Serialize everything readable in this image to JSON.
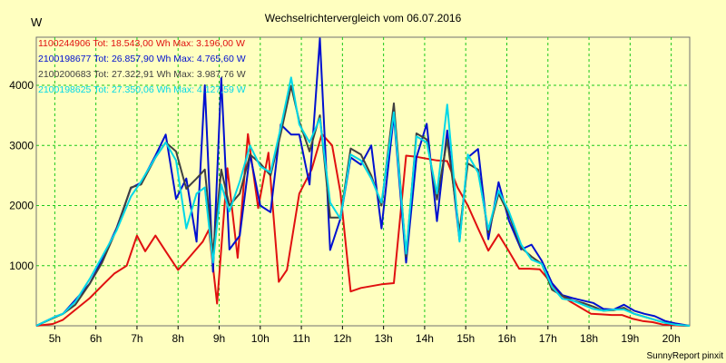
{
  "chart_data": {
    "type": "line",
    "title": "Wechselrichtervergleich vom 06.07.2016",
    "ylabel": "W",
    "xlabel": "",
    "footer": "SunnyReport pinxit",
    "ylim": [
      0,
      4800
    ],
    "xlim": [
      4.55,
      20.45
    ],
    "yticks": [
      1000,
      2000,
      3000,
      4000
    ],
    "xticks": [
      5,
      6,
      7,
      8,
      9,
      10,
      11,
      12,
      13,
      14,
      15,
      16,
      17,
      18,
      19,
      20
    ],
    "xtick_labels": [
      "5h",
      "6h",
      "7h",
      "8h",
      "9h",
      "10h",
      "11h",
      "12h",
      "13h",
      "14h",
      "15h",
      "16h",
      "17h",
      "18h",
      "19h",
      "20h"
    ],
    "grid": true,
    "legend_position": "top-left",
    "series": [
      {
        "name": "1100244906",
        "legend": "1100244906 Tot: 18.543,00 Wh Max: 3.196,00 W",
        "color": "#e01010",
        "x": [
          4.55,
          4.95,
          5.2,
          5.45,
          5.85,
          6.2,
          6.45,
          6.75,
          7.0,
          7.2,
          7.45,
          7.7,
          8.0,
          8.2,
          8.4,
          8.6,
          8.75,
          8.95,
          9.2,
          9.45,
          9.7,
          9.95,
          10.2,
          10.45,
          10.65,
          10.95,
          11.25,
          11.5,
          11.75,
          11.95,
          12.2,
          12.45,
          12.7,
          12.95,
          13.25,
          13.55,
          13.8,
          14.05,
          14.3,
          14.55,
          14.8,
          15.05,
          15.3,
          15.55,
          15.8,
          16.05,
          16.3,
          16.55,
          16.8,
          17.05,
          17.3,
          17.55,
          17.8,
          18.05,
          18.3,
          18.55,
          18.8,
          19.05,
          19.3,
          19.55,
          19.8,
          20.05,
          20.3,
          20.45
        ],
        "values": [
          0,
          30,
          100,
          240,
          460,
          700,
          870,
          1000,
          1500,
          1240,
          1500,
          1240,
          930,
          1080,
          1240,
          1400,
          1600,
          370,
          2620,
          1130,
          3190,
          1960,
          2880,
          730,
          930,
          2200,
          2600,
          3190,
          3000,
          2220,
          570,
          630,
          660,
          690,
          710,
          2830,
          2810,
          2780,
          2750,
          2740,
          2300,
          2000,
          1620,
          1250,
          1520,
          1240,
          950,
          950,
          940,
          740,
          520,
          400,
          300,
          200,
          190,
          180,
          180,
          120,
          80,
          60,
          20,
          10,
          0,
          0
        ]
      },
      {
        "name": "2100198677",
        "legend": "2100198677 Tot: 26.857,90 Wh Max: 4.765,60 W",
        "color": "#0010d0",
        "x": [
          4.55,
          5.0,
          5.2,
          5.5,
          5.85,
          6.15,
          6.5,
          6.85,
          7.1,
          7.45,
          7.7,
          7.95,
          8.2,
          8.45,
          8.65,
          8.85,
          9.05,
          9.25,
          9.5,
          9.75,
          10.0,
          10.25,
          10.5,
          10.75,
          10.95,
          11.2,
          11.45,
          11.7,
          11.95,
          12.2,
          12.45,
          12.7,
          12.95,
          13.25,
          13.55,
          13.8,
          14.05,
          14.3,
          14.55,
          14.85,
          15.05,
          15.3,
          15.55,
          15.8,
          16.05,
          16.35,
          16.6,
          16.85,
          17.1,
          17.35,
          17.6,
          17.85,
          18.1,
          18.35,
          18.6,
          18.85,
          19.1,
          19.35,
          19.6,
          19.85,
          20.1,
          20.45
        ],
        "values": [
          0,
          150,
          200,
          430,
          700,
          1100,
          1620,
          2290,
          2380,
          2830,
          3180,
          2110,
          2450,
          1400,
          4000,
          900,
          4120,
          1270,
          1500,
          2850,
          2000,
          1890,
          3350,
          3180,
          3180,
          2350,
          4780,
          1260,
          1780,
          2800,
          2680,
          3000,
          1620,
          3500,
          1050,
          2800,
          3360,
          1740,
          3250,
          1420,
          2800,
          2940,
          1440,
          2390,
          1750,
          1270,
          1350,
          1080,
          710,
          510,
          460,
          420,
          380,
          280,
          270,
          350,
          250,
          200,
          160,
          80,
          40,
          0
        ]
      },
      {
        "name": "2100200683",
        "legend": "2100200683 Tot: 27.322,91 Wh Max: 3.987,76 W",
        "color": "#404040",
        "x": [
          4.55,
          5.0,
          5.2,
          5.5,
          5.85,
          6.15,
          6.5,
          6.85,
          7.1,
          7.45,
          7.7,
          7.95,
          8.2,
          8.45,
          8.65,
          8.85,
          9.05,
          9.25,
          9.5,
          9.75,
          10.0,
          10.25,
          10.5,
          10.75,
          10.95,
          11.2,
          11.45,
          11.7,
          11.95,
          12.2,
          12.45,
          12.7,
          12.95,
          13.25,
          13.55,
          13.8,
          14.05,
          14.3,
          14.55,
          14.85,
          15.05,
          15.3,
          15.55,
          15.8,
          16.05,
          16.35,
          16.6,
          16.85,
          17.1,
          17.35,
          17.6,
          17.85,
          18.1,
          18.35,
          18.6,
          18.85,
          19.1,
          19.35,
          19.6,
          19.85,
          20.1,
          20.45
        ],
        "values": [
          0,
          140,
          200,
          350,
          700,
          1050,
          1600,
          2300,
          2350,
          2800,
          3050,
          2900,
          2280,
          2450,
          2600,
          1200,
          2600,
          2000,
          2200,
          2850,
          2700,
          2500,
          3200,
          3990,
          3400,
          2900,
          3500,
          1800,
          1800,
          2950,
          2850,
          2500,
          2000,
          3700,
          1150,
          3200,
          3100,
          2100,
          3100,
          1560,
          2700,
          2600,
          1550,
          2200,
          1850,
          1300,
          1150,
          1030,
          600,
          500,
          420,
          380,
          320,
          250,
          260,
          300,
          200,
          150,
          100,
          50,
          20,
          0
        ]
      },
      {
        "name": "2100198625",
        "legend": "2100198625 Tot: 27.350,06 Wh Max: 4.127,59 W",
        "color": "#00d8e8",
        "x": [
          4.55,
          5.0,
          5.2,
          5.5,
          5.85,
          6.15,
          6.5,
          6.85,
          7.1,
          7.45,
          7.7,
          7.95,
          8.2,
          8.45,
          8.65,
          8.85,
          9.05,
          9.25,
          9.5,
          9.75,
          10.0,
          10.25,
          10.5,
          10.75,
          10.95,
          11.2,
          11.45,
          11.7,
          11.95,
          12.2,
          12.45,
          12.7,
          12.95,
          13.25,
          13.55,
          13.8,
          14.05,
          14.3,
          14.55,
          14.85,
          15.05,
          15.3,
          15.55,
          15.8,
          16.05,
          16.35,
          16.6,
          16.85,
          17.1,
          17.35,
          17.6,
          17.85,
          18.1,
          18.35,
          18.6,
          18.85,
          19.1,
          19.35,
          19.6,
          19.85,
          20.1,
          20.45
        ],
        "values": [
          0,
          150,
          200,
          400,
          780,
          1150,
          1580,
          2150,
          2400,
          2800,
          3050,
          2750,
          1620,
          2200,
          2300,
          1050,
          2350,
          1900,
          2400,
          3000,
          2650,
          2550,
          3300,
          4130,
          3350,
          3050,
          3450,
          2050,
          1780,
          2850,
          2750,
          2450,
          2050,
          3550,
          1200,
          3150,
          3050,
          2200,
          3680,
          1400,
          2850,
          2550,
          1600,
          2250,
          1900,
          1350,
          1100,
          1030,
          650,
          450,
          420,
          350,
          280,
          250,
          270,
          270,
          200,
          150,
          100,
          50,
          20,
          0
        ]
      }
    ]
  }
}
